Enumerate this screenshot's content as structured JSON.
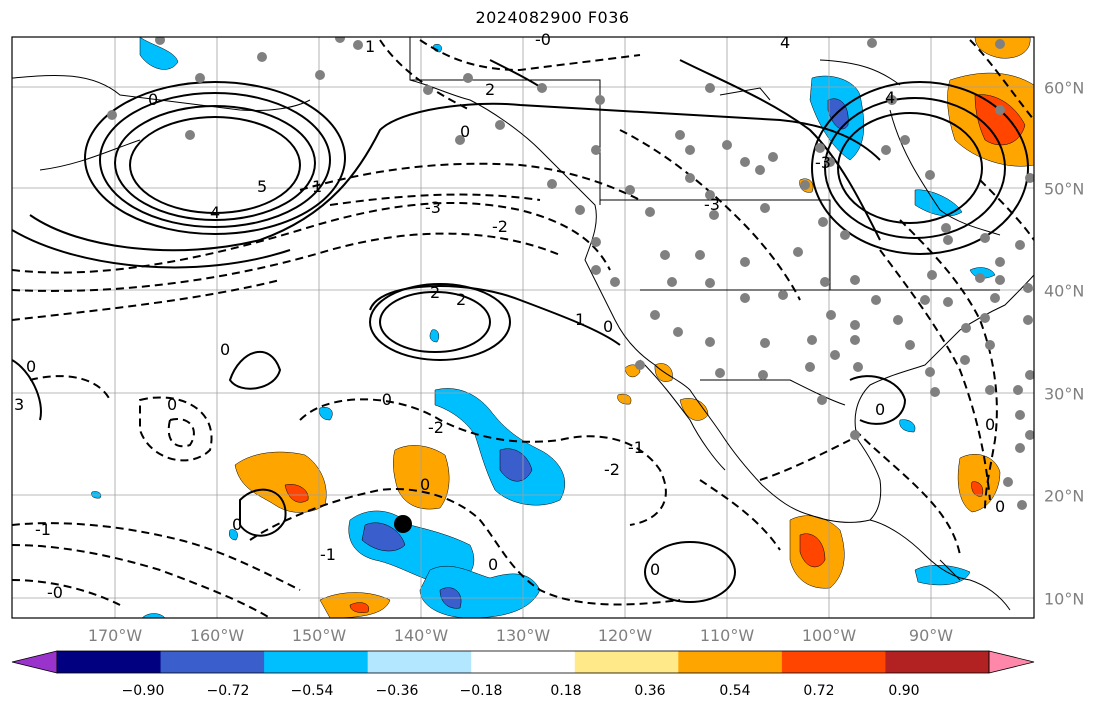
{
  "title": "2024082900 F036",
  "map": {
    "longitude_labels": [
      "170°W",
      "160°W",
      "150°W",
      "140°W",
      "130°W",
      "120°W",
      "110°W",
      "100°W",
      "90°W"
    ],
    "latitude_labels": [
      "60°N",
      "50°N",
      "40°N",
      "30°N",
      "20°N",
      "10°N"
    ],
    "storm_marker": "filled-black-circle",
    "station_marker": "gray-dot"
  },
  "contour_labels": [
    "0",
    "1",
    "-1",
    "2",
    "-2",
    "3",
    "-3",
    "4",
    "5",
    "-0"
  ],
  "colorbar": {
    "tick_labels": [
      "−0.90",
      "−0.72",
      "−0.54",
      "−0.36",
      "−0.18",
      "0.18",
      "0.36",
      "0.54",
      "0.72",
      "0.90"
    ],
    "colors": [
      "#9933cc",
      "#000080",
      "#3a5fcd",
      "#00bfff",
      "#b3e6ff",
      "#ffffff",
      "#ffe989",
      "#ffa500",
      "#ff4500",
      "#b22222",
      "#ff88aa"
    ]
  }
}
